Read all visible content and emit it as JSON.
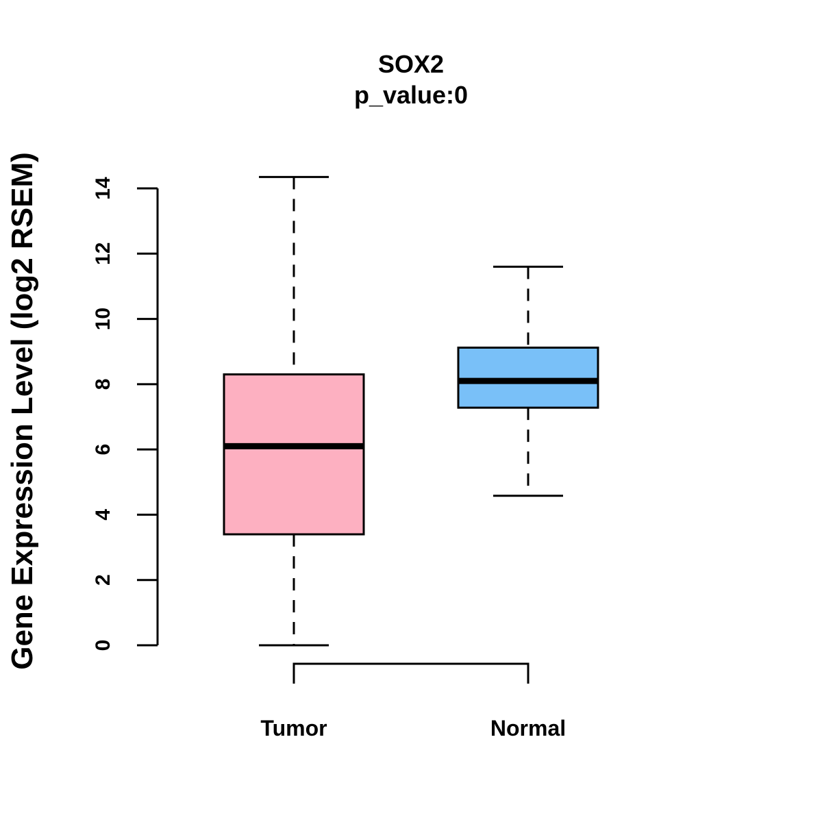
{
  "chart_data": {
    "type": "boxplot",
    "title": "SOX2",
    "subtitle": "p_value:0",
    "ylabel": "Gene Expression Level (log2 RSEM)",
    "xlabel": "",
    "ylim": [
      0,
      14
    ],
    "yticks": [
      0,
      2,
      4,
      6,
      8,
      10,
      12,
      14
    ],
    "categories": [
      "Tumor",
      "Normal"
    ],
    "groups": [
      {
        "name": "Tumor",
        "min": 0.0,
        "q1": 3.4,
        "median": 6.1,
        "q3": 8.3,
        "max": 14.35,
        "color": "#FDB0C1"
      },
      {
        "name": "Normal",
        "min": 4.58,
        "q1": 7.28,
        "median": 8.1,
        "q3": 9.12,
        "max": 11.6,
        "color": "#79C0F8"
      }
    ],
    "comparison_bracket": {
      "from": "Tumor",
      "to": "Normal",
      "label": ""
    }
  }
}
